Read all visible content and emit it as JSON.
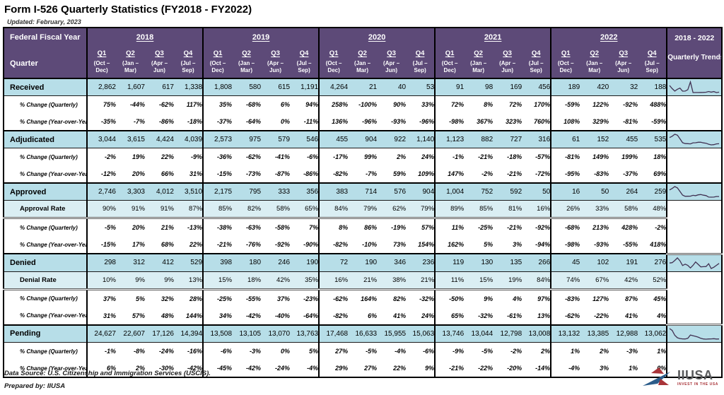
{
  "page": {
    "title": "Form I-526 Quarterly Statistics (FY2018 - FY2022)",
    "updated": "Updated: February, 2023"
  },
  "colors": {
    "header_purple": "#5D4A78",
    "row_blue": "#B7DEE8",
    "row_light_blue": "#DAEEF3",
    "spark_line": "#403152",
    "logo_blue": "#2B5C8A",
    "logo_red": "#A93439"
  },
  "table": {
    "corner": {
      "fiscal_year": "Federal Fiscal Year",
      "quarter": "Quarter"
    },
    "years": [
      "2018",
      "2019",
      "2020",
      "2021",
      "2022"
    ],
    "quarter_labels": [
      "Q1",
      "Q2",
      "Q3",
      "Q4"
    ],
    "quarter_months": [
      "(Oct – Dec)",
      "(Jan – Mar)",
      "(Apr – Jun)",
      "(Jul – Sep)"
    ],
    "trends_header": {
      "line1": "2018 - 2022",
      "line2": "Quarterly Trends"
    },
    "sections": [
      {
        "rows": [
          {
            "kind": "main",
            "label": "Received",
            "values": [
              "2,862",
              "1,607",
              "617",
              "1,338",
              "1,808",
              "580",
              "615",
              "1,191",
              "4,264",
              "21",
              "40",
              "53",
              "91",
              "98",
              "169",
              "456",
              "189",
              "420",
              "32",
              "188"
            ]
          },
          {
            "kind": "pct",
            "label": "% Change (Quarterly)",
            "values": [
              "75%",
              "-44%",
              "-62%",
              "117%",
              "35%",
              "-68%",
              "6%",
              "94%",
              "258%",
              "-100%",
              "90%",
              "33%",
              "72%",
              "8%",
              "72%",
              "170%",
              "-59%",
              "122%",
              "-92%",
              "488%"
            ]
          },
          {
            "kind": "pct",
            "label": "% Change (Year-over-Year)",
            "values": [
              "-35%",
              "-7%",
              "-86%",
              "-18%",
              "-37%",
              "-64%",
              "0%",
              "-11%",
              "136%",
              "-96%",
              "-93%",
              "-96%",
              "-98%",
              "367%",
              "323%",
              "760%",
              "108%",
              "329%",
              "-81%",
              "-59%"
            ]
          }
        ]
      },
      {
        "rows": [
          {
            "kind": "main",
            "label": "Adjudicated",
            "values": [
              "3,044",
              "3,615",
              "4,424",
              "4,039",
              "2,573",
              "975",
              "579",
              "546",
              "455",
              "904",
              "922",
              "1,140",
              "1,123",
              "882",
              "727",
              "316",
              "61",
              "152",
              "455",
              "535"
            ]
          },
          {
            "kind": "pct",
            "label": "% Change (Quarterly)",
            "values": [
              "-2%",
              "19%",
              "22%",
              "-9%",
              "-36%",
              "-62%",
              "-41%",
              "-6%",
              "-17%",
              "99%",
              "2%",
              "24%",
              "-1%",
              "-21%",
              "-18%",
              "-57%",
              "-81%",
              "149%",
              "199%",
              "18%"
            ]
          },
          {
            "kind": "pct",
            "label": "% Change (Year-over-Year)",
            "values": [
              "-12%",
              "20%",
              "66%",
              "31%",
              "-15%",
              "-73%",
              "-87%",
              "-86%",
              "-82%",
              "-7%",
              "59%",
              "109%",
              "147%",
              "-2%",
              "-21%",
              "-72%",
              "-95%",
              "-83%",
              "-37%",
              "69%"
            ]
          }
        ]
      },
      {
        "rows": [
          {
            "kind": "main",
            "label": "Approved",
            "values": [
              "2,746",
              "3,303",
              "4,012",
              "3,510",
              "2,175",
              "795",
              "333",
              "356",
              "383",
              "714",
              "576",
              "904",
              "1,004",
              "752",
              "592",
              "50",
              "16",
              "50",
              "264",
              "259"
            ]
          },
          {
            "kind": "rate",
            "label": "Approval Rate",
            "values": [
              "90%",
              "91%",
              "91%",
              "87%",
              "85%",
              "82%",
              "58%",
              "65%",
              "84%",
              "79%",
              "62%",
              "79%",
              "89%",
              "85%",
              "81%",
              "16%",
              "26%",
              "33%",
              "58%",
              "48%"
            ]
          },
          {
            "kind": "pct",
            "label": "% Change (Quarterly)",
            "values": [
              "-5%",
              "20%",
              "21%",
              "-13%",
              "-38%",
              "-63%",
              "-58%",
              "7%",
              "8%",
              "86%",
              "-19%",
              "57%",
              "11%",
              "-25%",
              "-21%",
              "-92%",
              "-68%",
              "213%",
              "428%",
              "-2%"
            ]
          },
          {
            "kind": "pct",
            "label": "% Change (Year-over-Year)",
            "values": [
              "-15%",
              "17%",
              "68%",
              "22%",
              "-21%",
              "-76%",
              "-92%",
              "-90%",
              "-82%",
              "-10%",
              "73%",
              "154%",
              "162%",
              "5%",
              "3%",
              "-94%",
              "-98%",
              "-93%",
              "-55%",
              "418%"
            ]
          }
        ]
      },
      {
        "rows": [
          {
            "kind": "main",
            "label": "Denied",
            "values": [
              "298",
              "312",
              "412",
              "529",
              "398",
              "180",
              "246",
              "190",
              "72",
              "190",
              "346",
              "236",
              "119",
              "130",
              "135",
              "266",
              "45",
              "102",
              "191",
              "276"
            ]
          },
          {
            "kind": "rate",
            "label": "Denial Rate",
            "values": [
              "10%",
              "9%",
              "9%",
              "13%",
              "15%",
              "18%",
              "42%",
              "35%",
              "16%",
              "21%",
              "38%",
              "21%",
              "11%",
              "15%",
              "19%",
              "84%",
              "74%",
              "67%",
              "42%",
              "52%"
            ]
          },
          {
            "kind": "pct",
            "label": "% Change (Quarterly)",
            "values": [
              "37%",
              "5%",
              "32%",
              "28%",
              "-25%",
              "-55%",
              "37%",
              "-23%",
              "-62%",
              "164%",
              "82%",
              "-32%",
              "-50%",
              "9%",
              "4%",
              "97%",
              "-83%",
              "127%",
              "87%",
              "45%"
            ]
          },
          {
            "kind": "pct",
            "label": "% Change (Year-over-Year)",
            "values": [
              "31%",
              "57%",
              "48%",
              "144%",
              "34%",
              "-42%",
              "-40%",
              "-64%",
              "-82%",
              "6%",
              "41%",
              "24%",
              "65%",
              "-32%",
              "-61%",
              "13%",
              "-62%",
              "-22%",
              "41%",
              "4%"
            ]
          }
        ]
      },
      {
        "rows": [
          {
            "kind": "main",
            "label": "Pending",
            "values": [
              "24,627",
              "22,607",
              "17,126",
              "14,394",
              "13,508",
              "13,105",
              "13,070",
              "13,763",
              "17,468",
              "16,633",
              "15,955",
              "15,063",
              "13,746",
              "13,044",
              "12,798",
              "13,008",
              "13,132",
              "13,385",
              "12,988",
              "13,062"
            ]
          },
          {
            "kind": "pct",
            "label": "% Change (Quarterly)",
            "values": [
              "-1%",
              "-8%",
              "-24%",
              "-16%",
              "-6%",
              "-3%",
              "0%",
              "5%",
              "27%",
              "-5%",
              "-4%",
              "-6%",
              "-9%",
              "-5%",
              "-2%",
              "2%",
              "1%",
              "2%",
              "-3%",
              "1%"
            ]
          },
          {
            "kind": "pct",
            "label": "% Change (Year-over-Year)",
            "values": [
              "6%",
              "2%",
              "-30%",
              "-42%",
              "-45%",
              "-42%",
              "-24%",
              "-4%",
              "29%",
              "27%",
              "22%",
              "9%",
              "-21%",
              "-22%",
              "-20%",
              "-14%",
              "-4%",
              "3%",
              "1%",
              "0%"
            ]
          }
        ]
      }
    ]
  },
  "footer": {
    "source": "Data Source: U.S. Citizenship and Immigration Services (USCIS).",
    "prepared": "Prepared by: IIUSA"
  },
  "logo": {
    "name": "IIUSA",
    "tagline": "INVEST IN THE USA"
  }
}
